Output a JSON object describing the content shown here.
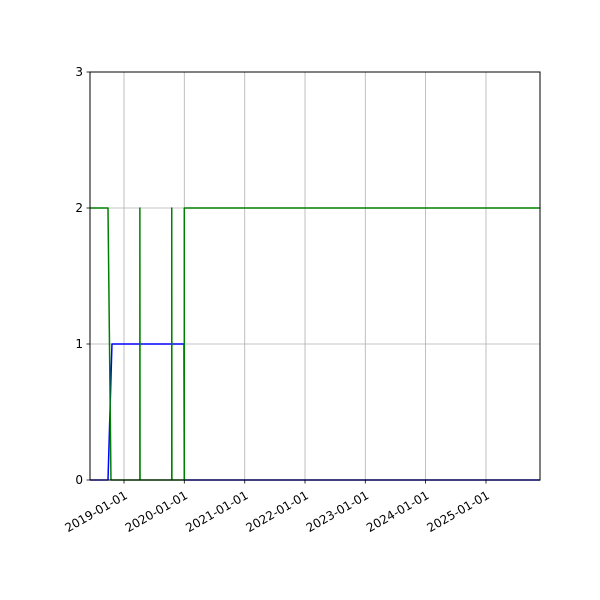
{
  "chart_data": {
    "type": "line",
    "title": "",
    "xlabel": "",
    "ylabel": "",
    "x_type": "date",
    "xlim": [
      "2018-06-09",
      "2025-11-24"
    ],
    "ylim": [
      0,
      3
    ],
    "grid": true,
    "x_ticks": [
      "2019-01-01",
      "2020-01-01",
      "2021-01-01",
      "2022-01-01",
      "2023-01-01",
      "2024-01-01",
      "2025-01-01"
    ],
    "y_ticks": [
      "0",
      "1",
      "2",
      "3"
    ],
    "series": [
      {
        "color": "#0000ff",
        "points": [
          [
            "2018-06-09",
            0
          ],
          [
            "2018-09-26",
            0
          ],
          [
            "2018-10-20",
            1
          ],
          [
            "2019-12-30",
            1
          ],
          [
            "2020-01-01",
            0
          ],
          [
            "2025-11-24",
            0
          ]
        ]
      },
      {
        "color": "#008000",
        "points": [
          [
            "2018-06-09",
            2
          ],
          [
            "2018-09-26",
            2
          ],
          [
            "2018-10-14",
            0
          ],
          [
            "2019-04-07",
            0
          ],
          [
            "2019-04-07",
            2
          ],
          [
            "2019-04-08",
            0
          ],
          [
            "2019-10-17",
            0
          ],
          [
            "2019-10-17",
            2
          ],
          [
            "2019-10-18",
            0
          ],
          [
            "2020-01-01",
            0
          ],
          [
            "2020-01-01",
            2
          ],
          [
            "2025-11-24",
            2
          ]
        ]
      }
    ]
  }
}
